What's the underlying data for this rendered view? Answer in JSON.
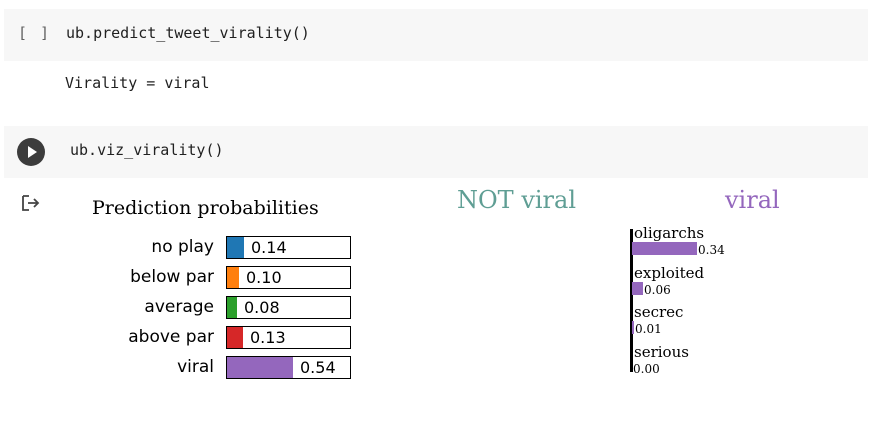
{
  "cells": [
    {
      "prompt": "[ ]",
      "code": "ub.predict_tweet_virality()",
      "output": "Virality = viral"
    },
    {
      "code": "ub.viz_virality()"
    }
  ],
  "icons": {
    "run": "play-icon",
    "output": "output-arrow-icon"
  },
  "chart_data": {
    "type": "bar",
    "panels": [
      {
        "title": "Prediction probabilities",
        "categories": [
          "no play",
          "below par",
          "average",
          "above par",
          "viral"
        ],
        "values": [
          0.14,
          0.1,
          0.08,
          0.13,
          0.54
        ],
        "value_labels": [
          "0.14",
          "0.10",
          "0.08",
          "0.13",
          "0.54"
        ],
        "colors": [
          "#1f77b4",
          "#ff7f0e",
          "#2ca02c",
          "#d62728",
          "#9467bd"
        ],
        "xlim": [
          0,
          1
        ],
        "orientation": "horizontal"
      },
      {
        "class_labels": {
          "negative": "NOT viral",
          "positive": "viral"
        },
        "class_colors": {
          "negative": "#5f9e94",
          "positive": "#9467bd"
        },
        "features": [
          "oligarchs",
          "exploited",
          "secrec",
          "serious"
        ],
        "values": [
          0.34,
          0.06,
          0.01,
          0.0
        ],
        "value_labels": [
          "0.34",
          "0.06",
          "0.01",
          "0.00"
        ],
        "color": "#9467bd",
        "orientation": "horizontal"
      }
    ]
  }
}
